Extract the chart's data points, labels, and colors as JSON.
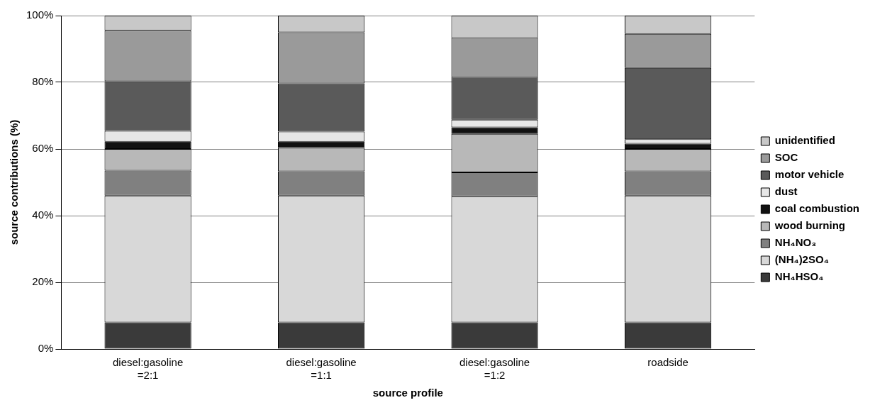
{
  "chart_data": {
    "type": "bar",
    "stacked": true,
    "xlabel": "source profile",
    "ylabel": "source contributions (%)",
    "categories": [
      "diesel:gasoline =2:1",
      "diesel:gasoline =1:1",
      "diesel:gasoline =1:2",
      "roadside"
    ],
    "series": [
      {
        "name": "NH₄HSO₄",
        "color": "#3a3a3a",
        "values": [
          8,
          8,
          8,
          8
        ]
      },
      {
        "name": "(NH₄)2SO₄",
        "color": "#d8d8d8",
        "values": [
          38,
          38,
          37.8,
          38
        ]
      },
      {
        "name": "NH₄NO₃",
        "color": "#808080",
        "values": [
          7.5,
          7.3,
          7.2,
          7.3
        ]
      },
      {
        "name": "wood burning",
        "color": "#b8b8b8",
        "values": [
          6.5,
          7,
          11.5,
          6.7
        ]
      },
      {
        "name": "coal combustion",
        "color": "#111111",
        "values": [
          2.2,
          1.9,
          2,
          1.6
        ]
      },
      {
        "name": "dust",
        "color": "#e6e6e6",
        "values": [
          3.2,
          3,
          2.3,
          1.3
        ]
      },
      {
        "name": "motor vehicle",
        "color": "#5a5a5a",
        "values": [
          14.9,
          14.5,
          12.8,
          21.4
        ]
      },
      {
        "name": "SOC",
        "color": "#9a9a9a",
        "values": [
          15.2,
          15.3,
          11.7,
          10.2
        ]
      },
      {
        "name": "unidentified",
        "color": "#c8c8c8",
        "values": [
          4.5,
          5,
          6.7,
          5.5
        ]
      }
    ],
    "ylim": [
      0,
      100
    ],
    "yticks": [
      {
        "value": 0,
        "label": "0%"
      },
      {
        "value": 20,
        "label": "20%"
      },
      {
        "value": 40,
        "label": "40%"
      },
      {
        "value": 60,
        "label": "60%"
      },
      {
        "value": 80,
        "label": "80%"
      },
      {
        "value": 100,
        "label": "100%"
      }
    ],
    "grid": "y",
    "legend": "right"
  }
}
